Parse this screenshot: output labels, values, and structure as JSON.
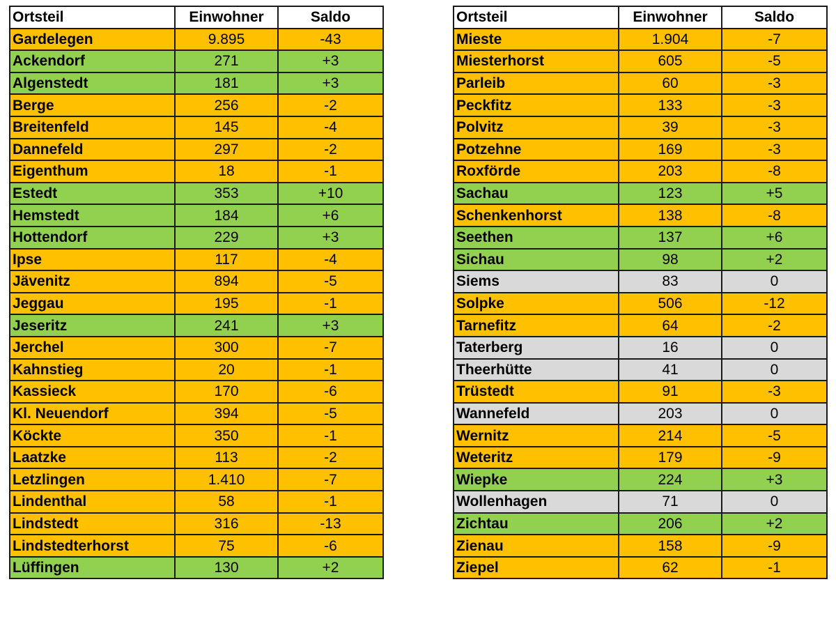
{
  "colors": {
    "decrease": "#FFC000",
    "increase": "#92D050",
    "neutral": "#D9D9D9",
    "header": "#FFFFFF"
  },
  "headers": {
    "ortsteil": "Ortsteil",
    "einwohner": "Einwohner",
    "saldo": "Saldo"
  },
  "left_rows": [
    {
      "ortsteil": "Gardelegen",
      "einwohner": "9.895",
      "saldo": "-43",
      "status": "decrease"
    },
    {
      "ortsteil": "Ackendorf",
      "einwohner": "271",
      "saldo": "+3",
      "status": "increase"
    },
    {
      "ortsteil": "Algenstedt",
      "einwohner": "181",
      "saldo": "+3",
      "status": "increase"
    },
    {
      "ortsteil": "Berge",
      "einwohner": "256",
      "saldo": "-2",
      "status": "decrease"
    },
    {
      "ortsteil": "Breitenfeld",
      "einwohner": "145",
      "saldo": "-4",
      "status": "decrease"
    },
    {
      "ortsteil": "Dannefeld",
      "einwohner": "297",
      "saldo": "-2",
      "status": "decrease"
    },
    {
      "ortsteil": "Eigenthum",
      "einwohner": "18",
      "saldo": "-1",
      "status": "decrease"
    },
    {
      "ortsteil": "Estedt",
      "einwohner": "353",
      "saldo": "+10",
      "status": "increase"
    },
    {
      "ortsteil": "Hemstedt",
      "einwohner": "184",
      "saldo": "+6",
      "status": "increase"
    },
    {
      "ortsteil": "Hottendorf",
      "einwohner": "229",
      "saldo": "+3",
      "status": "increase"
    },
    {
      "ortsteil": "Ipse",
      "einwohner": "117",
      "saldo": "-4",
      "status": "decrease"
    },
    {
      "ortsteil": "Jävenitz",
      "einwohner": "894",
      "saldo": "-5",
      "status": "decrease"
    },
    {
      "ortsteil": "Jeggau",
      "einwohner": "195",
      "saldo": "-1",
      "status": "decrease"
    },
    {
      "ortsteil": "Jeseritz",
      "einwohner": "241",
      "saldo": "+3",
      "status": "increase"
    },
    {
      "ortsteil": "Jerchel",
      "einwohner": "300",
      "saldo": "-7",
      "status": "decrease"
    },
    {
      "ortsteil": "Kahnstieg",
      "einwohner": "20",
      "saldo": "-1",
      "status": "decrease"
    },
    {
      "ortsteil": "Kassieck",
      "einwohner": "170",
      "saldo": "-6",
      "status": "decrease"
    },
    {
      "ortsteil": "Kl. Neuendorf",
      "einwohner": "394",
      "saldo": "-5",
      "status": "decrease"
    },
    {
      "ortsteil": "Köckte",
      "einwohner": "350",
      "saldo": "-1",
      "status": "decrease"
    },
    {
      "ortsteil": "Laatzke",
      "einwohner": "113",
      "saldo": "-2",
      "status": "decrease"
    },
    {
      "ortsteil": "Letzlingen",
      "einwohner": "1.410",
      "saldo": "-7",
      "status": "decrease"
    },
    {
      "ortsteil": "Lindenthal",
      "einwohner": "58",
      "saldo": "-1",
      "status": "decrease"
    },
    {
      "ortsteil": "Lindstedt",
      "einwohner": "316",
      "saldo": "-13",
      "status": "decrease"
    },
    {
      "ortsteil": "Lindstedterhorst",
      "einwohner": "75",
      "saldo": "-6",
      "status": "decrease"
    },
    {
      "ortsteil": "Lüffingen",
      "einwohner": "130",
      "saldo": "+2",
      "status": "increase"
    }
  ],
  "right_rows": [
    {
      "ortsteil": "Mieste",
      "einwohner": "1.904",
      "saldo": "-7",
      "status": "decrease"
    },
    {
      "ortsteil": "Miesterhorst",
      "einwohner": "605",
      "saldo": "-5",
      "status": "decrease"
    },
    {
      "ortsteil": "Parleib",
      "einwohner": "60",
      "saldo": "-3",
      "status": "decrease"
    },
    {
      "ortsteil": "Peckfitz",
      "einwohner": "133",
      "saldo": "-3",
      "status": "decrease"
    },
    {
      "ortsteil": "Polvitz",
      "einwohner": "39",
      "saldo": "-3",
      "status": "decrease"
    },
    {
      "ortsteil": "Potzehne",
      "einwohner": "169",
      "saldo": "-3",
      "status": "decrease"
    },
    {
      "ortsteil": "Roxförde",
      "einwohner": "203",
      "saldo": "-8",
      "status": "decrease"
    },
    {
      "ortsteil": "Sachau",
      "einwohner": "123",
      "saldo": "+5",
      "status": "increase"
    },
    {
      "ortsteil": "Schenkenhorst",
      "einwohner": "138",
      "saldo": "-8",
      "status": "decrease"
    },
    {
      "ortsteil": "Seethen",
      "einwohner": "137",
      "saldo": "+6",
      "status": "increase"
    },
    {
      "ortsteil": "Sichau",
      "einwohner": "98",
      "saldo": "+2",
      "status": "increase"
    },
    {
      "ortsteil": "Siems",
      "einwohner": "83",
      "saldo": "0",
      "status": "neutral"
    },
    {
      "ortsteil": "Solpke",
      "einwohner": "506",
      "saldo": "-12",
      "status": "decrease"
    },
    {
      "ortsteil": "Tarnefitz",
      "einwohner": "64",
      "saldo": "-2",
      "status": "decrease"
    },
    {
      "ortsteil": "Taterberg",
      "einwohner": "16",
      "saldo": "0",
      "status": "neutral"
    },
    {
      "ortsteil": "Theerhütte",
      "einwohner": "41",
      "saldo": "0",
      "status": "neutral"
    },
    {
      "ortsteil": "Trüstedt",
      "einwohner": "91",
      "saldo": "-3",
      "status": "decrease"
    },
    {
      "ortsteil": "Wannefeld",
      "einwohner": "203",
      "saldo": "0",
      "status": "neutral"
    },
    {
      "ortsteil": "Wernitz",
      "einwohner": "214",
      "saldo": "-5",
      "status": "decrease"
    },
    {
      "ortsteil": "Weteritz",
      "einwohner": "179",
      "saldo": "-9",
      "status": "decrease"
    },
    {
      "ortsteil": "Wiepke",
      "einwohner": "224",
      "saldo": "+3",
      "status": "increase"
    },
    {
      "ortsteil": "Wollenhagen",
      "einwohner": "71",
      "saldo": "0",
      "status": "neutral"
    },
    {
      "ortsteil": "Zichtau",
      "einwohner": "206",
      "saldo": "+2",
      "status": "increase"
    },
    {
      "ortsteil": "Zienau",
      "einwohner": "158",
      "saldo": "-9",
      "status": "decrease"
    },
    {
      "ortsteil": "Ziepel",
      "einwohner": "62",
      "saldo": "-1",
      "status": "decrease"
    }
  ]
}
